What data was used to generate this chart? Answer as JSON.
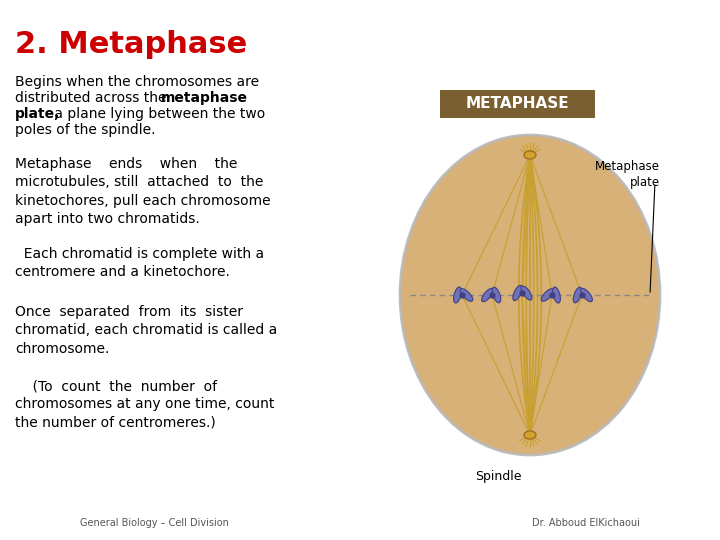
{
  "title": "2. Metaphase",
  "title_color": "#cc0000",
  "title_fontsize": 22,
  "bg_color": "#ffffff",
  "paragraph1": "Begins when the chromosomes are\ndistributed across the  metaphase\nplate,  a plane lying between the two\npoles of the spindle.",
  "paragraph1_bold_words": [
    "metaphase",
    "plate,"
  ],
  "paragraph2": "Metaphase    ends    when    the\nmicrotubules, still  attached  to  the\nkinetochores, pull each chromosome\napart into two chromatids.",
  "paragraph3": "  Each chromatid is complete with a\ncentromere and a kinetochore.",
  "paragraph4": "Once  separated  from  its  sister\nchromatid, each chromatid is called a\nchromosome.",
  "paragraph5": "    (To  count  the  number  of\nchromosomes at any one time, count\nthe number of centromeres.)",
  "footer_left": "General Biology – Cell Division",
  "footer_right": "Dr. Abboud ElKichaoui",
  "footer_fontsize": 7,
  "text_fontsize": 10,
  "label_metaphase": "METAPHASE",
  "label_plate": "Metaphase\nplate",
  "label_spindle": "Spindle",
  "metaphase_box_color": "#7a6030",
  "metaphase_box_text_color": "#ffffff",
  "cell_color": "#d4a96a",
  "cell_edge_color": "#b8b8b8",
  "chromosome_color": "#7070bb",
  "spindle_color": "#c8a030"
}
